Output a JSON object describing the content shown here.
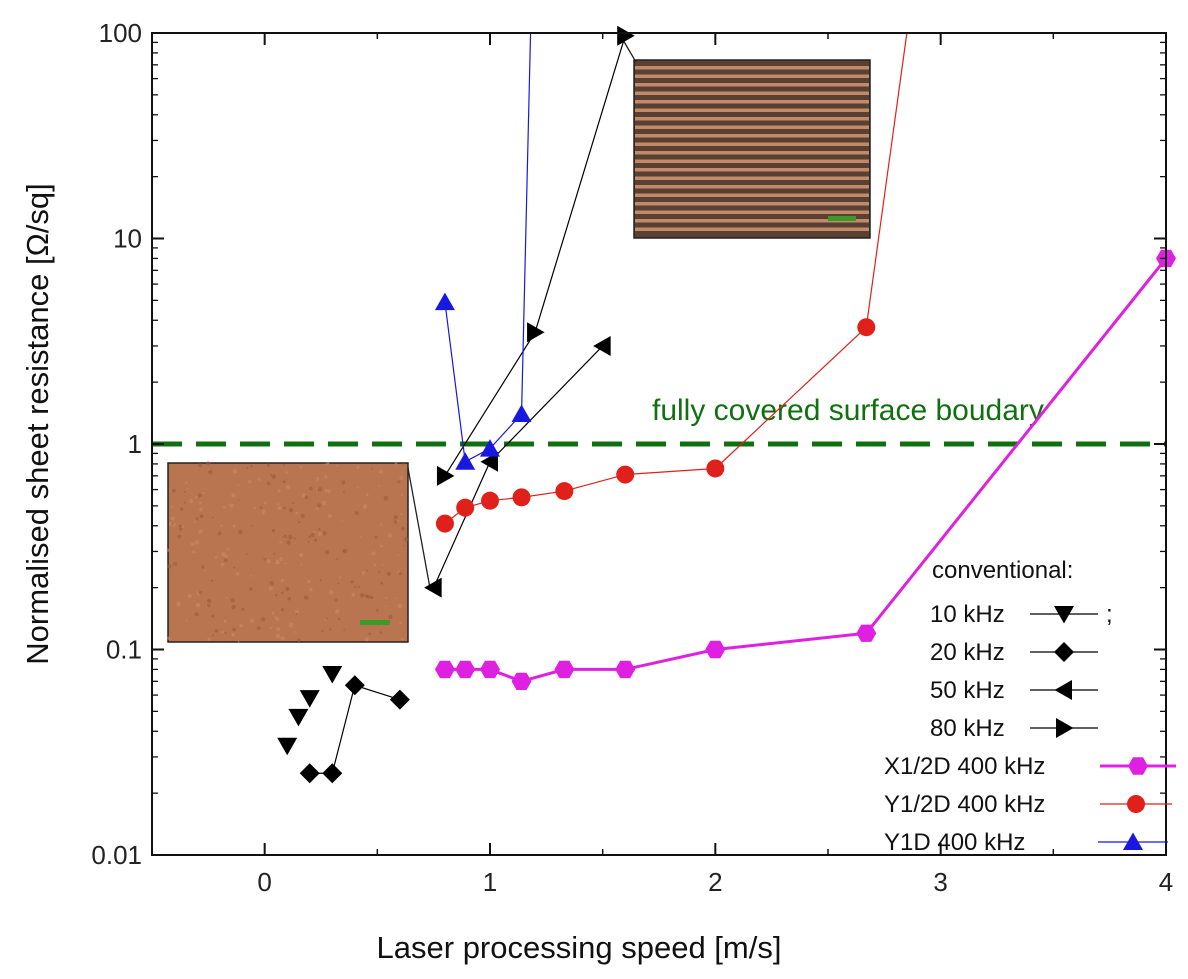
{
  "chart_data": {
    "type": "scatter",
    "xlabel": "Laser processing speed [m/s]",
    "ylabel": "Normalised sheet resistance [Ω/sq]",
    "xlim": [
      -0.5,
      4
    ],
    "ylim": [
      0.01,
      100
    ],
    "yscale": "log",
    "x_ticks": [
      "0",
      "1",
      "2",
      "3",
      "4"
    ],
    "y_ticks": [
      "0.01",
      "0.1",
      "1",
      "10",
      "100"
    ],
    "reference_line": {
      "y": 1,
      "label": "fully covered surface boudary",
      "color": "#107010"
    },
    "legend": {
      "title": "conventional:",
      "position": "bottom-right"
    },
    "series": [
      {
        "name": "10 kHz",
        "suffix": ";",
        "marker": "triangle-down",
        "color": "#000000",
        "line": false,
        "x": [
          0.1,
          0.15,
          0.2,
          0.3
        ],
        "y": [
          0.034,
          0.047,
          0.058,
          0.076
        ]
      },
      {
        "name": "20 kHz",
        "marker": "diamond",
        "color": "#000000",
        "line": true,
        "x": [
          0.2,
          0.3,
          0.4,
          0.6
        ],
        "y": [
          0.025,
          0.025,
          0.067,
          0.057
        ]
      },
      {
        "name": "50 kHz",
        "marker": "triangle-left",
        "color": "#000000",
        "line": true,
        "x": [
          0.75,
          1.0,
          1.5
        ],
        "y": [
          0.2,
          0.82,
          3.0
        ]
      },
      {
        "name": "80 kHz",
        "marker": "triangle-right",
        "color": "#000000",
        "line": true,
        "x": [
          0.8,
          1.2,
          1.6
        ],
        "y": [
          0.7,
          3.5,
          97
        ]
      },
      {
        "name": "X1/2D 400 kHz",
        "marker": "hexagon",
        "color": "#e020e0",
        "line": true,
        "x": [
          0.8,
          0.89,
          1.0,
          1.14,
          1.33,
          1.6,
          2.0,
          2.67,
          4.0
        ],
        "y": [
          0.08,
          0.08,
          0.08,
          0.07,
          0.08,
          0.08,
          0.1,
          0.12,
          8.0
        ]
      },
      {
        "name": "Y1/2D 400 kHz",
        "marker": "circle",
        "color": "#e0201a",
        "line": true,
        "x": [
          0.8,
          0.89,
          1.0,
          1.14,
          1.33,
          1.6,
          2.0,
          2.67,
          2.85
        ],
        "y": [
          0.41,
          0.49,
          0.53,
          0.55,
          0.59,
          0.71,
          0.76,
          3.7,
          100
        ]
      },
      {
        "name": "Y1D   400 kHz",
        "marker": "triangle-up",
        "color": "#1818e0",
        "line": true,
        "x": [
          0.8,
          0.89,
          1.0,
          1.14,
          1.18
        ],
        "y": [
          4.9,
          0.82,
          0.95,
          1.4,
          100
        ]
      }
    ]
  }
}
